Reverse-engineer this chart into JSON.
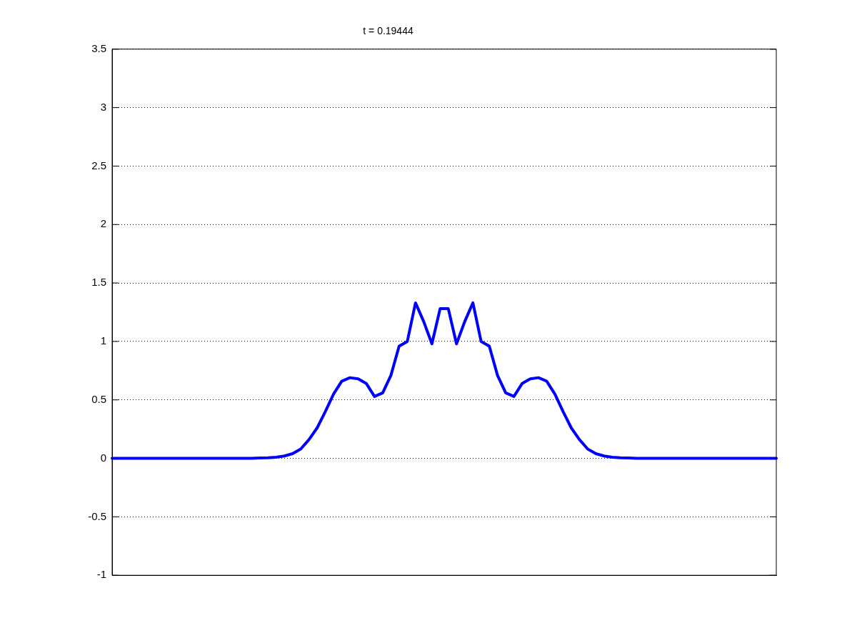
{
  "chart_data": {
    "type": "line",
    "title": "t = 0.19444",
    "categories": [
      null,
      null,
      null,
      null,
      null,
      null,
      null,
      null,
      null,
      null,
      null,
      null,
      null,
      null,
      null,
      null,
      null,
      null,
      null,
      null,
      null,
      null,
      null,
      null,
      null,
      null,
      null,
      null,
      null,
      null,
      null,
      null,
      null,
      null,
      null,
      null,
      null,
      null,
      null,
      null,
      null,
      null,
      null,
      null,
      null,
      null,
      null,
      null,
      null,
      null,
      null,
      null,
      null,
      null,
      null,
      null,
      null,
      null,
      null,
      null,
      null,
      null,
      null,
      null,
      null,
      null,
      null,
      null,
      null,
      null,
      null,
      null,
      null,
      null,
      null,
      null,
      null,
      null,
      null,
      null,
      null,
      null
    ],
    "series": [
      {
        "color": "#0000ff",
        "values": [
          0,
          0,
          0,
          0,
          0,
          0,
          0,
          0,
          0,
          0,
          0,
          0,
          0,
          0,
          0,
          0,
          0,
          0,
          0.003,
          0.005,
          0.01,
          0.02,
          0.04,
          0.08,
          0.16,
          0.26,
          0.4,
          0.55,
          0.66,
          0.69,
          0.68,
          0.64,
          0.53,
          0.56,
          0.71,
          0.96,
          1,
          1.33,
          1.17,
          0.98,
          1.28,
          1.28,
          0.98,
          1.17,
          1.33,
          1,
          0.96,
          0.71,
          0.56,
          0.53,
          0.64,
          0.68,
          0.69,
          0.66,
          0.55,
          0.4,
          0.26,
          0.16,
          0.08,
          0.04,
          0.02,
          0.01,
          0.005,
          0.003,
          0,
          0,
          0,
          0,
          0,
          0,
          0,
          0,
          0,
          0,
          0,
          0,
          0,
          0,
          0,
          0,
          0,
          0
        ]
      }
    ],
    "ylim": [
      -1,
      3.5
    ],
    "yticks": [
      -1,
      -0.5,
      0,
      0.5,
      1,
      1.5,
      2,
      2.5,
      3,
      3.5
    ],
    "grid": "y",
    "marker": "none",
    "line_style": "solid"
  }
}
